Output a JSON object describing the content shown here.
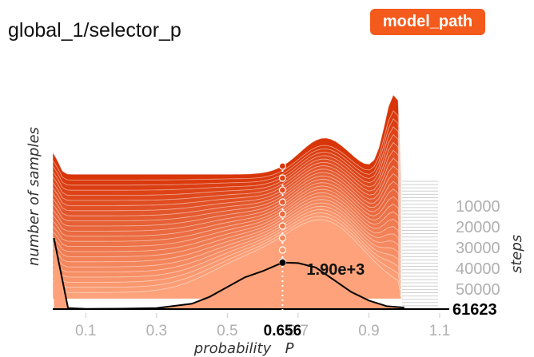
{
  "title": "global_1/selector_p",
  "badge": {
    "label": "model_path",
    "color": "#f35a1c"
  },
  "chart_data": {
    "type": "area",
    "xlabel": "probability",
    "xvar": "P",
    "ylabel": "number of samples",
    "zlabel": "steps",
    "xlim": [
      0.0,
      1.1
    ],
    "x_ticks": [
      "0.1",
      "0.3",
      "0.5",
      "0.7",
      "0.9",
      "1.1"
    ],
    "x_tick_values": [
      0.1,
      0.3,
      0.5,
      0.7,
      0.9,
      1.1
    ],
    "step_ticks": [
      "10000",
      "20000",
      "30000",
      "40000",
      "50000"
    ],
    "step_tick_values": [
      10000,
      20000,
      30000,
      40000,
      50000
    ],
    "step_range": [
      0,
      61623
    ],
    "current_step": "61623",
    "cursor_x": "0.656",
    "cursor_x_value": 0.656,
    "cursor_count": "1.90e+3",
    "colors": {
      "oldest": "#d83508",
      "newest": "#fda27a",
      "line": "#000000"
    },
    "last_series": {
      "name": "61623",
      "x": [
        0.01,
        0.05,
        0.1,
        0.2,
        0.3,
        0.4,
        0.45,
        0.5,
        0.55,
        0.6,
        0.656,
        0.7,
        0.75,
        0.8,
        0.85,
        0.9,
        0.95,
        1.0
      ],
      "y": [
        2900,
        40,
        10,
        15,
        40,
        220,
        500,
        900,
        1300,
        1550,
        1900,
        1880,
        1700,
        1200,
        700,
        350,
        120,
        60
      ],
      "ylim": [
        0,
        3100
      ]
    }
  }
}
